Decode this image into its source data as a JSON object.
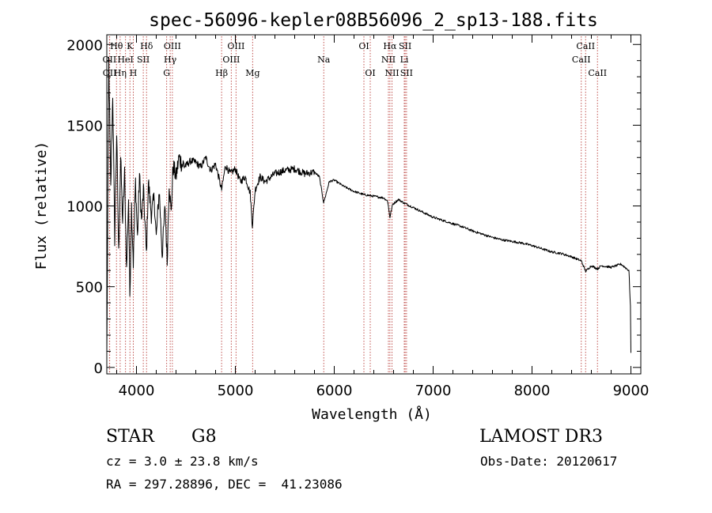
{
  "chart_data": {
    "type": "line",
    "title": "spec-56096-kepler08B56096_2_sp13-188.fits",
    "xlabel": "Wavelength (Å)",
    "ylabel": "Flux (relative)",
    "xlim": [
      3700,
      9100
    ],
    "ylim": [
      -40,
      2060
    ],
    "xticks": [
      4000,
      5000,
      6000,
      7000,
      8000,
      9000
    ],
    "yticks": [
      0,
      500,
      1000,
      1500,
      2000
    ],
    "series": [
      {
        "name": "spectrum",
        "x": [
          3700,
          3720,
          3740,
          3760,
          3780,
          3800,
          3820,
          3840,
          3860,
          3880,
          3900,
          3920,
          3933,
          3950,
          3968,
          3990,
          4010,
          4030,
          4050,
          4070,
          4101,
          4120,
          4150,
          4180,
          4200,
          4230,
          4260,
          4290,
          4310,
          4330,
          4350,
          4370,
          4400,
          4430,
          4460,
          4500,
          4550,
          4600,
          4650,
          4700,
          4750,
          4800,
          4861,
          4900,
          4950,
          5000,
          5050,
          5100,
          5150,
          5172,
          5183,
          5200,
          5250,
          5300,
          5400,
          5500,
          5600,
          5700,
          5800,
          5850,
          5893,
          5950,
          6000,
          6100,
          6200,
          6300,
          6400,
          6500,
          6540,
          6563,
          6590,
          6650,
          6700,
          6800,
          6900,
          7000,
          7100,
          7200,
          7300,
          7400,
          7500,
          7600,
          7700,
          7800,
          7900,
          8000,
          8100,
          8200,
          8300,
          8400,
          8498,
          8542,
          8600,
          8662,
          8700,
          8800,
          8900,
          8980,
          8995,
          9000
        ],
        "y": [
          60,
          1900,
          1100,
          1700,
          800,
          1450,
          700,
          1300,
          900,
          1200,
          600,
          1050,
          450,
          1000,
          650,
          1150,
          800,
          1200,
          900,
          1100,
          700,
          1150,
          950,
          1050,
          800,
          1100,
          700,
          1000,
          650,
          1150,
          950,
          1250,
          1180,
          1300,
          1260,
          1250,
          1280,
          1270,
          1240,
          1300,
          1220,
          1260,
          1100,
          1250,
          1200,
          1230,
          1150,
          1180,
          1080,
          880,
          960,
          1100,
          1180,
          1150,
          1200,
          1220,
          1230,
          1200,
          1210,
          1180,
          1020,
          1150,
          1160,
          1120,
          1090,
          1070,
          1060,
          1050,
          1030,
          930,
          1010,
          1040,
          1020,
          990,
          960,
          930,
          910,
          890,
          870,
          845,
          825,
          805,
          790,
          780,
          770,
          755,
          735,
          715,
          705,
          685,
          660,
          595,
          630,
          610,
          630,
          620,
          640,
          600,
          380,
          90
        ]
      }
    ],
    "lines": [
      {
        "label": "OII",
        "x": 3727,
        "row": 1,
        "align": "center"
      },
      {
        "label": "OII",
        "x": 3729,
        "row": 2,
        "align": "center"
      },
      {
        "label": "Hθ",
        "x": 3798,
        "row": 0,
        "align": "center"
      },
      {
        "label": "Hη",
        "x": 3835,
        "row": 2,
        "align": "center"
      },
      {
        "label": "HeI",
        "x": 3889,
        "row": 1,
        "align": "center"
      },
      {
        "label": "K",
        "x": 3934,
        "row": 0,
        "align": "center"
      },
      {
        "label": "H",
        "x": 3968,
        "row": 2,
        "align": "center"
      },
      {
        "label": "SII",
        "x": 4069,
        "row": 1,
        "align": "center"
      },
      {
        "label": "Hδ",
        "x": 4102,
        "row": 0,
        "align": "center"
      },
      {
        "label": "G",
        "x": 4305,
        "row": 2,
        "align": "center"
      },
      {
        "label": "Hγ",
        "x": 4341,
        "row": 1,
        "align": "center"
      },
      {
        "label": "OIII",
        "x": 4363,
        "row": 0,
        "align": "center"
      },
      {
        "label": "Hβ",
        "x": 4861,
        "row": 2,
        "align": "center"
      },
      {
        "label": "OIII",
        "x": 4959,
        "row": 1,
        "align": "center"
      },
      {
        "label": "OIII",
        "x": 5007,
        "row": 0,
        "align": "center"
      },
      {
        "label": "Mg",
        "x": 5175,
        "row": 2,
        "align": "center"
      },
      {
        "label": "Na",
        "x": 5894,
        "row": 1,
        "align": "center"
      },
      {
        "label": "OI",
        "x": 6300,
        "row": 0,
        "align": "center"
      },
      {
        "label": "OI",
        "x": 6364,
        "row": 2,
        "align": "center"
      },
      {
        "label": "NII",
        "x": 6548,
        "row": 1,
        "align": "center"
      },
      {
        "label": "Hα",
        "x": 6563,
        "row": 0,
        "align": "center"
      },
      {
        "label": "NII",
        "x": 6584,
        "row": 2,
        "align": "center"
      },
      {
        "label": "SII",
        "x": 6717,
        "row": 0,
        "align": "center"
      },
      {
        "label": "Li",
        "x": 6708,
        "row": 1,
        "align": "center"
      },
      {
        "label": "SII",
        "x": 6731,
        "row": 2,
        "align": "center"
      },
      {
        "label": "CaII",
        "x": 8498,
        "row": 1,
        "align": "center"
      },
      {
        "label": "CaII",
        "x": 8542,
        "row": 0,
        "align": "center"
      },
      {
        "label": "CaII",
        "x": 8662,
        "row": 2,
        "align": "center"
      }
    ]
  },
  "info": {
    "object_class": "STAR",
    "subclass": "G8",
    "survey": "LAMOST DR3",
    "redshift": "cz = 3.0 ± 23.8 km/s",
    "obs_date": "Obs-Date: 20120617",
    "coords": "RA = 297.28896, DEC =  41.23086"
  },
  "colors": {
    "line_marker": "#c0504d",
    "spectrum": "#000000"
  }
}
